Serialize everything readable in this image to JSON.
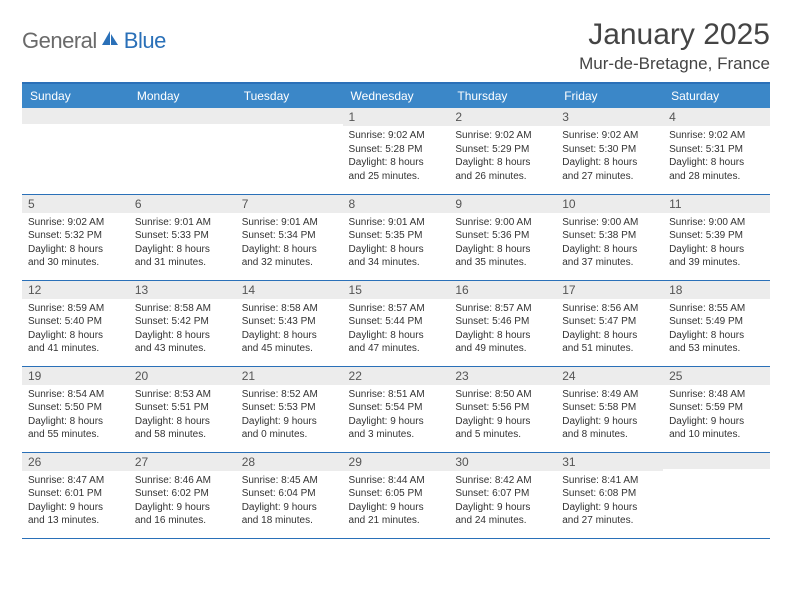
{
  "brand": {
    "left": "General",
    "right": "Blue"
  },
  "title": "January 2025",
  "location": "Mur-de-Bretagne, France",
  "colors": {
    "header_bg": "#3b87c8",
    "header_border": "#2a70b8",
    "daynum_bg": "#ececec",
    "text": "#333333",
    "brand_gray": "#6a6a6a",
    "brand_blue": "#2a70b8"
  },
  "weekdays": [
    "Sunday",
    "Monday",
    "Tuesday",
    "Wednesday",
    "Thursday",
    "Friday",
    "Saturday"
  ],
  "weeks": [
    [
      {
        "n": "",
        "sunrise": "",
        "sunset": "",
        "day1": "",
        "day2": ""
      },
      {
        "n": "",
        "sunrise": "",
        "sunset": "",
        "day1": "",
        "day2": ""
      },
      {
        "n": "",
        "sunrise": "",
        "sunset": "",
        "day1": "",
        "day2": ""
      },
      {
        "n": "1",
        "sunrise": "Sunrise: 9:02 AM",
        "sunset": "Sunset: 5:28 PM",
        "day1": "Daylight: 8 hours",
        "day2": "and 25 minutes."
      },
      {
        "n": "2",
        "sunrise": "Sunrise: 9:02 AM",
        "sunset": "Sunset: 5:29 PM",
        "day1": "Daylight: 8 hours",
        "day2": "and 26 minutes."
      },
      {
        "n": "3",
        "sunrise": "Sunrise: 9:02 AM",
        "sunset": "Sunset: 5:30 PM",
        "day1": "Daylight: 8 hours",
        "day2": "and 27 minutes."
      },
      {
        "n": "4",
        "sunrise": "Sunrise: 9:02 AM",
        "sunset": "Sunset: 5:31 PM",
        "day1": "Daylight: 8 hours",
        "day2": "and 28 minutes."
      }
    ],
    [
      {
        "n": "5",
        "sunrise": "Sunrise: 9:02 AM",
        "sunset": "Sunset: 5:32 PM",
        "day1": "Daylight: 8 hours",
        "day2": "and 30 minutes."
      },
      {
        "n": "6",
        "sunrise": "Sunrise: 9:01 AM",
        "sunset": "Sunset: 5:33 PM",
        "day1": "Daylight: 8 hours",
        "day2": "and 31 minutes."
      },
      {
        "n": "7",
        "sunrise": "Sunrise: 9:01 AM",
        "sunset": "Sunset: 5:34 PM",
        "day1": "Daylight: 8 hours",
        "day2": "and 32 minutes."
      },
      {
        "n": "8",
        "sunrise": "Sunrise: 9:01 AM",
        "sunset": "Sunset: 5:35 PM",
        "day1": "Daylight: 8 hours",
        "day2": "and 34 minutes."
      },
      {
        "n": "9",
        "sunrise": "Sunrise: 9:00 AM",
        "sunset": "Sunset: 5:36 PM",
        "day1": "Daylight: 8 hours",
        "day2": "and 35 minutes."
      },
      {
        "n": "10",
        "sunrise": "Sunrise: 9:00 AM",
        "sunset": "Sunset: 5:38 PM",
        "day1": "Daylight: 8 hours",
        "day2": "and 37 minutes."
      },
      {
        "n": "11",
        "sunrise": "Sunrise: 9:00 AM",
        "sunset": "Sunset: 5:39 PM",
        "day1": "Daylight: 8 hours",
        "day2": "and 39 minutes."
      }
    ],
    [
      {
        "n": "12",
        "sunrise": "Sunrise: 8:59 AM",
        "sunset": "Sunset: 5:40 PM",
        "day1": "Daylight: 8 hours",
        "day2": "and 41 minutes."
      },
      {
        "n": "13",
        "sunrise": "Sunrise: 8:58 AM",
        "sunset": "Sunset: 5:42 PM",
        "day1": "Daylight: 8 hours",
        "day2": "and 43 minutes."
      },
      {
        "n": "14",
        "sunrise": "Sunrise: 8:58 AM",
        "sunset": "Sunset: 5:43 PM",
        "day1": "Daylight: 8 hours",
        "day2": "and 45 minutes."
      },
      {
        "n": "15",
        "sunrise": "Sunrise: 8:57 AM",
        "sunset": "Sunset: 5:44 PM",
        "day1": "Daylight: 8 hours",
        "day2": "and 47 minutes."
      },
      {
        "n": "16",
        "sunrise": "Sunrise: 8:57 AM",
        "sunset": "Sunset: 5:46 PM",
        "day1": "Daylight: 8 hours",
        "day2": "and 49 minutes."
      },
      {
        "n": "17",
        "sunrise": "Sunrise: 8:56 AM",
        "sunset": "Sunset: 5:47 PM",
        "day1": "Daylight: 8 hours",
        "day2": "and 51 minutes."
      },
      {
        "n": "18",
        "sunrise": "Sunrise: 8:55 AM",
        "sunset": "Sunset: 5:49 PM",
        "day1": "Daylight: 8 hours",
        "day2": "and 53 minutes."
      }
    ],
    [
      {
        "n": "19",
        "sunrise": "Sunrise: 8:54 AM",
        "sunset": "Sunset: 5:50 PM",
        "day1": "Daylight: 8 hours",
        "day2": "and 55 minutes."
      },
      {
        "n": "20",
        "sunrise": "Sunrise: 8:53 AM",
        "sunset": "Sunset: 5:51 PM",
        "day1": "Daylight: 8 hours",
        "day2": "and 58 minutes."
      },
      {
        "n": "21",
        "sunrise": "Sunrise: 8:52 AM",
        "sunset": "Sunset: 5:53 PM",
        "day1": "Daylight: 9 hours",
        "day2": "and 0 minutes."
      },
      {
        "n": "22",
        "sunrise": "Sunrise: 8:51 AM",
        "sunset": "Sunset: 5:54 PM",
        "day1": "Daylight: 9 hours",
        "day2": "and 3 minutes."
      },
      {
        "n": "23",
        "sunrise": "Sunrise: 8:50 AM",
        "sunset": "Sunset: 5:56 PM",
        "day1": "Daylight: 9 hours",
        "day2": "and 5 minutes."
      },
      {
        "n": "24",
        "sunrise": "Sunrise: 8:49 AM",
        "sunset": "Sunset: 5:58 PM",
        "day1": "Daylight: 9 hours",
        "day2": "and 8 minutes."
      },
      {
        "n": "25",
        "sunrise": "Sunrise: 8:48 AM",
        "sunset": "Sunset: 5:59 PM",
        "day1": "Daylight: 9 hours",
        "day2": "and 10 minutes."
      }
    ],
    [
      {
        "n": "26",
        "sunrise": "Sunrise: 8:47 AM",
        "sunset": "Sunset: 6:01 PM",
        "day1": "Daylight: 9 hours",
        "day2": "and 13 minutes."
      },
      {
        "n": "27",
        "sunrise": "Sunrise: 8:46 AM",
        "sunset": "Sunset: 6:02 PM",
        "day1": "Daylight: 9 hours",
        "day2": "and 16 minutes."
      },
      {
        "n": "28",
        "sunrise": "Sunrise: 8:45 AM",
        "sunset": "Sunset: 6:04 PM",
        "day1": "Daylight: 9 hours",
        "day2": "and 18 minutes."
      },
      {
        "n": "29",
        "sunrise": "Sunrise: 8:44 AM",
        "sunset": "Sunset: 6:05 PM",
        "day1": "Daylight: 9 hours",
        "day2": "and 21 minutes."
      },
      {
        "n": "30",
        "sunrise": "Sunrise: 8:42 AM",
        "sunset": "Sunset: 6:07 PM",
        "day1": "Daylight: 9 hours",
        "day2": "and 24 minutes."
      },
      {
        "n": "31",
        "sunrise": "Sunrise: 8:41 AM",
        "sunset": "Sunset: 6:08 PM",
        "day1": "Daylight: 9 hours",
        "day2": "and 27 minutes."
      },
      {
        "n": "",
        "sunrise": "",
        "sunset": "",
        "day1": "",
        "day2": ""
      }
    ]
  ]
}
